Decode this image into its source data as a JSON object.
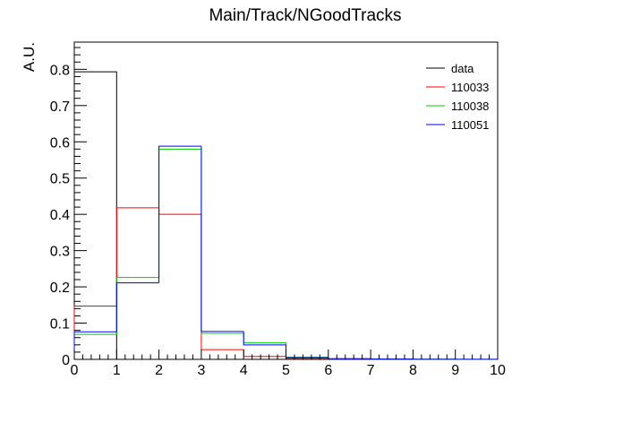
{
  "chart_data": {
    "type": "histogram",
    "title": "Main/Track/NGoodTracks",
    "xlabel": "",
    "ylabel": "A.U.",
    "xlim": [
      0,
      10
    ],
    "ylim": [
      0,
      0.875
    ],
    "xticks": [
      "0",
      "1",
      "2",
      "3",
      "4",
      "5",
      "6",
      "7",
      "8",
      "9",
      "10"
    ],
    "yticks": [
      "0",
      "0.1",
      "0.2",
      "0.3",
      "0.4",
      "0.5",
      "0.6",
      "0.7",
      "0.8"
    ],
    "bin_edges": [
      0,
      1,
      2,
      3,
      4,
      5,
      6,
      7,
      8,
      9,
      10
    ],
    "legend_position": "top-right",
    "series": [
      {
        "name": "data",
        "color": "#000000",
        "values": [
          0.793,
          null,
          null,
          null,
          null,
          null,
          null,
          null,
          null,
          null
        ]
      },
      {
        "name": "110033",
        "color": "#ff0000",
        "values": [
          0.147,
          0.418,
          0.4,
          0.027,
          0.008,
          0.003,
          0.001,
          0.0005,
          0.0002,
          0.0001
        ]
      },
      {
        "name": "110038",
        "color": "#00cc00",
        "values": [
          0.069,
          0.226,
          0.58,
          0.072,
          0.046,
          0.006,
          0.002,
          0.001,
          0.0005,
          0.0002
        ]
      },
      {
        "name": "110051",
        "color": "#0000ff",
        "values": [
          0.076,
          0.211,
          0.588,
          0.077,
          0.04,
          0.005,
          0.002,
          0.001,
          0.0004,
          0.0002
        ]
      }
    ]
  }
}
